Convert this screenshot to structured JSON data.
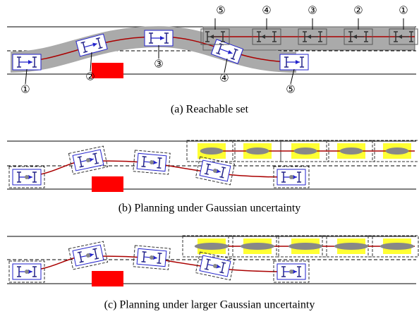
{
  "panels": [
    {
      "caption": "(a) Reachable set",
      "ego_labels": [
        "①",
        "②",
        "③",
        "④",
        "⑤"
      ],
      "other_labels": [
        "⑤",
        "④",
        "③",
        "②",
        "①"
      ]
    },
    {
      "caption": "(b) Planning under Gaussian uncertainty"
    },
    {
      "caption": "(c) Planning under larger Gaussian uncertainty"
    }
  ]
}
